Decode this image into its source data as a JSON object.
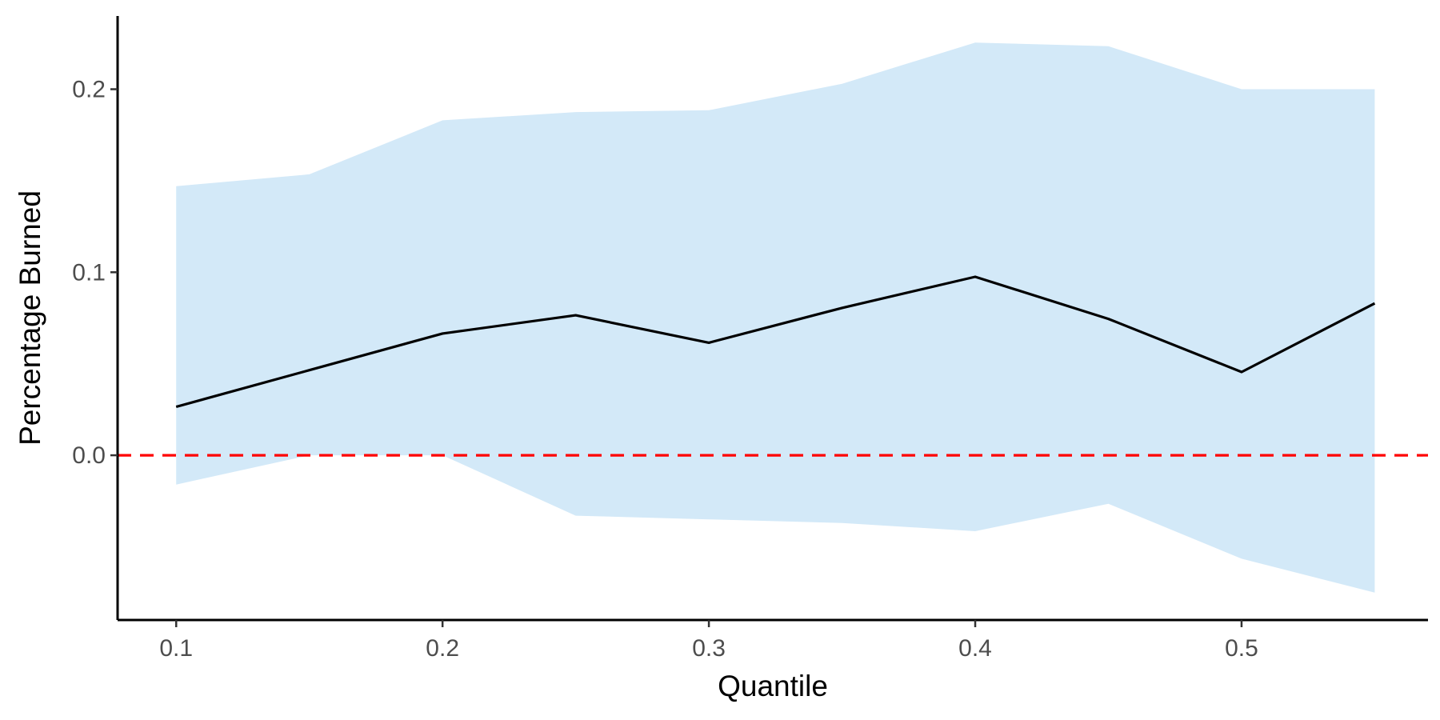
{
  "chart_data": {
    "type": "line",
    "title": "",
    "xlabel": "Quantile",
    "ylabel": "Percentage Burned",
    "xlim": [
      0.078,
      0.57
    ],
    "ylim": [
      -0.09,
      0.24
    ],
    "x_ticks": [
      0.1,
      0.2,
      0.3,
      0.4,
      0.5
    ],
    "x_tick_labels": [
      "0.1",
      "0.2",
      "0.3",
      "0.4",
      "0.5"
    ],
    "y_ticks": [
      0.0,
      0.1,
      0.2
    ],
    "y_tick_labels": [
      "0.0",
      "0.1",
      "0.2"
    ],
    "grid": false,
    "x": [
      0.1,
      0.15,
      0.2,
      0.25,
      0.3,
      0.35,
      0.4,
      0.45,
      0.5,
      0.55
    ],
    "series": [
      {
        "values": [
          0.0265,
          0.0465,
          0.0665,
          0.0765,
          0.0615,
          0.0805,
          0.0975,
          0.0745,
          0.0455,
          0.083
        ],
        "color": "#000000",
        "band_lower": [
          -0.016,
          0.0,
          0.0,
          -0.033,
          -0.035,
          -0.037,
          -0.0415,
          -0.0265,
          -0.0565,
          -0.075
        ],
        "band_upper": [
          0.147,
          0.1535,
          0.183,
          0.1875,
          0.1885,
          0.203,
          0.2255,
          0.2235,
          0.2,
          0.2
        ],
        "band_color": "#d3e9f8"
      }
    ],
    "reference_line": {
      "y": 0.0,
      "color": "#ff0000",
      "style": "dashed"
    }
  }
}
